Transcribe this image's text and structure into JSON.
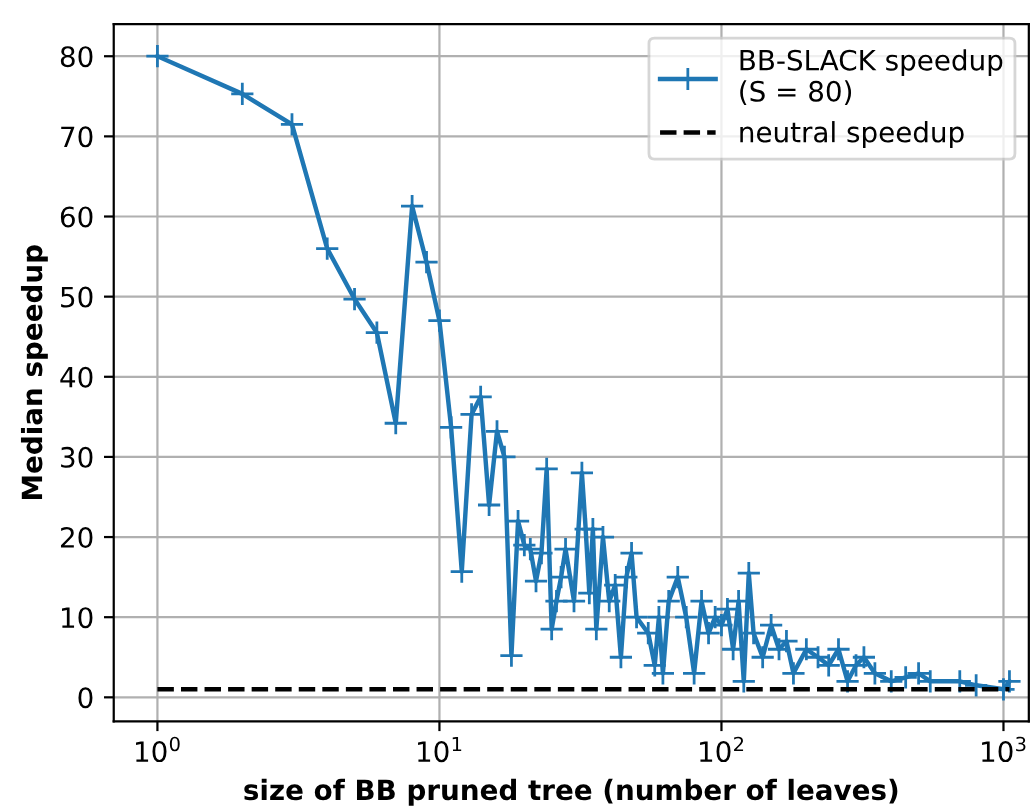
{
  "chart_data": {
    "type": "line",
    "xlabel": "size of BB pruned tree (number of leaves)",
    "ylabel": "Median speedup",
    "series": [
      {
        "name": "BB-SLACK speedup\n(S = 80)",
        "color": "#1f77b4",
        "marker": "cross",
        "line_style": "solid",
        "x": [
          1,
          2,
          3,
          4,
          5,
          6,
          7,
          8,
          9,
          10,
          11,
          12,
          13,
          14,
          15,
          16,
          17,
          18,
          19,
          20,
          21,
          22,
          23,
          24,
          25,
          26,
          27,
          28,
          30,
          32,
          33,
          34,
          35,
          36,
          38,
          40,
          42,
          44,
          46,
          48,
          50,
          55,
          58,
          60,
          62,
          65,
          70,
          75,
          80,
          85,
          90,
          95,
          100,
          105,
          110,
          115,
          120,
          125,
          130,
          140,
          150,
          160,
          170,
          180,
          200,
          220,
          240,
          260,
          280,
          300,
          320,
          350,
          400,
          450,
          500,
          550,
          700,
          800,
          1000,
          1050
        ],
        "values": [
          80,
          75.3,
          71.5,
          56,
          49.7,
          45.5,
          34.2,
          61.3,
          54.3,
          47,
          33.7,
          15.7,
          35.3,
          37.5,
          24,
          33.2,
          30,
          5.2,
          22,
          19,
          18.5,
          14.5,
          18,
          28.5,
          8.5,
          12,
          15,
          18.5,
          12,
          28,
          21,
          13,
          21,
          8.5,
          20,
          12,
          14,
          5,
          15,
          18,
          10,
          8,
          4,
          10,
          3,
          12,
          15,
          10,
          3,
          12,
          8,
          10,
          9,
          11,
          6,
          12,
          2,
          15.5,
          8,
          5,
          9,
          6,
          7,
          3,
          6,
          5,
          4,
          6,
          2,
          4,
          5,
          3,
          2,
          2.5,
          3,
          2,
          2,
          1.5,
          1,
          2
        ]
      },
      {
        "name": "neutral speedup",
        "color": "#000000",
        "marker": "none",
        "line_style": "dashed",
        "x": [
          1,
          1050
        ],
        "values": [
          1,
          1
        ]
      }
    ],
    "log": "x",
    "xlim": [
      0.7,
      1230
    ],
    "ylim": [
      -3,
      84
    ],
    "xticks": [
      {
        "value": 1,
        "label": "10$^{0}$"
      },
      {
        "value": 10,
        "label": "10$^{1}$"
      },
      {
        "value": 100,
        "label": "10$^{2}$"
      },
      {
        "value": 1000,
        "label": "10$^{3}$"
      }
    ],
    "yticks": [
      0,
      10,
      20,
      30,
      40,
      50,
      60,
      70,
      80
    ],
    "grid": true,
    "legend": "top right"
  }
}
